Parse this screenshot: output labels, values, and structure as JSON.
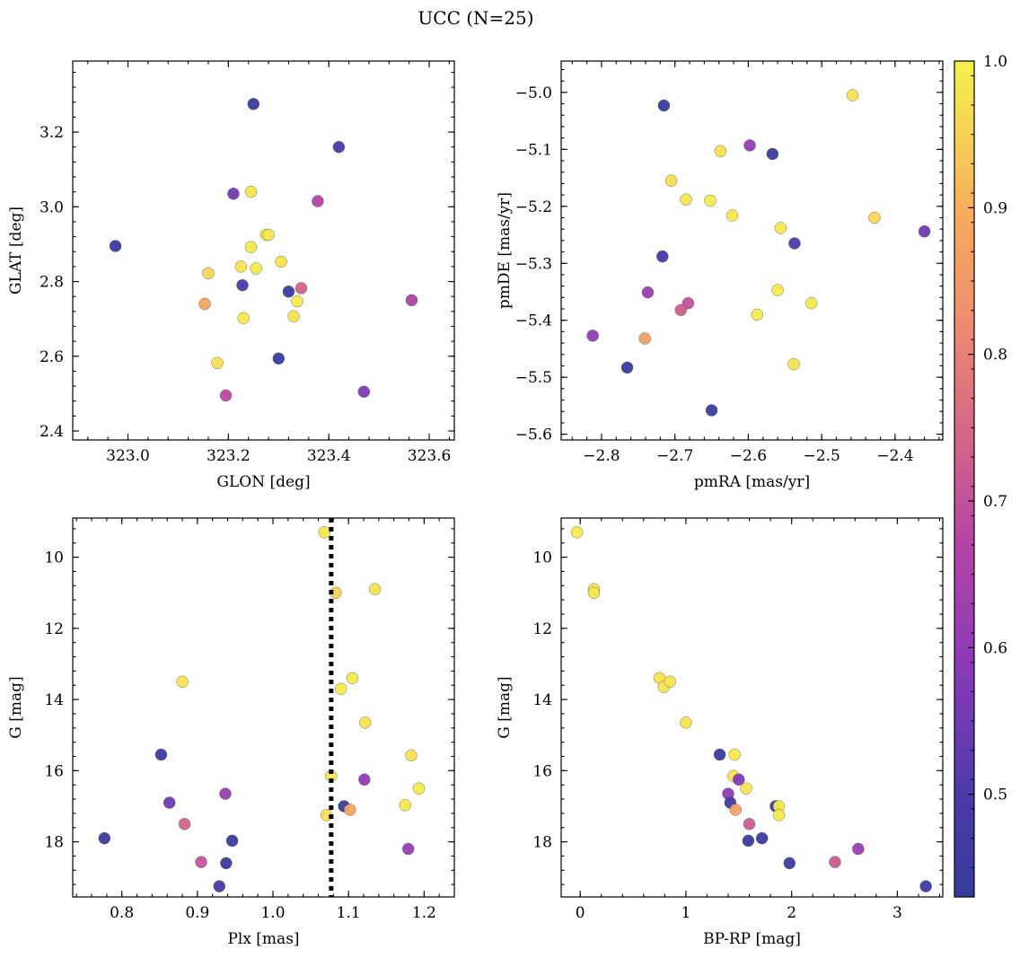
{
  "title": "UCC (N=25)",
  "colorbar": {
    "min": 0.43,
    "max": 1.0,
    "ticks": [
      0.5,
      0.6,
      0.7,
      0.8,
      0.9,
      1.0
    ],
    "tick_labels": [
      "0.5",
      "0.6",
      "0.7",
      "0.8",
      "0.9",
      "1.0"
    ],
    "colormap": "plasma"
  },
  "chart_data": [
    {
      "type": "scatter",
      "xlabel": "GLON [deg]",
      "ylabel": "GLAT [deg]",
      "xlim": [
        322.89,
        323.65
      ],
      "ylim": [
        2.376,
        3.39
      ],
      "xticks": [
        323.0,
        323.2,
        323.4,
        323.6
      ],
      "xtick_labels": [
        "323.0",
        "323.2",
        "323.4",
        "323.6"
      ],
      "yticks": [
        2.4,
        2.6,
        2.8,
        3.0,
        3.2
      ],
      "ytick_labels": [
        "2.4",
        "2.6",
        "2.8",
        "3.0",
        "3.2"
      ],
      "x": [
        322.975,
        323.25,
        323.42,
        323.21,
        323.245,
        323.378,
        323.275,
        323.28,
        323.245,
        323.305,
        323.16,
        323.225,
        323.255,
        323.153,
        323.228,
        323.32,
        323.345,
        323.337,
        323.565,
        323.23,
        323.33,
        323.178,
        323.3,
        323.195,
        323.47
      ],
      "y": [
        2.895,
        3.275,
        3.16,
        3.035,
        3.04,
        3.015,
        2.925,
        2.925,
        2.892,
        2.853,
        2.822,
        2.84,
        2.835,
        2.74,
        2.79,
        2.773,
        2.782,
        2.747,
        2.75,
        2.702,
        2.707,
        2.582,
        2.594,
        2.495,
        2.505
      ],
      "c": [
        0.45,
        0.44,
        0.5,
        0.55,
        0.98,
        0.67,
        0.98,
        0.99,
        0.99,
        0.98,
        0.96,
        0.98,
        0.99,
        0.88,
        0.5,
        0.45,
        0.74,
        0.99,
        0.66,
        0.99,
        0.98,
        0.97,
        0.45,
        0.68,
        0.58
      ]
    },
    {
      "type": "scatter",
      "xlabel": "pmRA [mas/yr]",
      "ylabel": "pmDE [mas/yr]",
      "xlim": [
        -2.855,
        -2.335
      ],
      "ylim": [
        -5.61,
        -4.945
      ],
      "xticks": [
        -2.8,
        -2.7,
        -2.6,
        -2.5,
        -2.4
      ],
      "xtick_labels": [
        "−2.8",
        "−2.7",
        "−2.6",
        "−2.5",
        "−2.4"
      ],
      "yticks": [
        -5.6,
        -5.5,
        -5.4,
        -5.3,
        -5.2,
        -5.1,
        -5.0
      ],
      "ytick_labels": [
        "−5.6",
        "−5.5",
        "−5.4",
        "−5.3",
        "−5.2",
        "−5.1",
        "−5.0"
      ],
      "x": [
        -2.458,
        -2.715,
        -2.598,
        -2.567,
        -2.638,
        -2.705,
        -2.685,
        -2.652,
        -2.622,
        -2.428,
        -2.556,
        -2.36,
        -2.537,
        -2.717,
        -2.737,
        -2.682,
        -2.692,
        -2.812,
        -2.741,
        -2.56,
        -2.514,
        -2.588,
        -2.538,
        -2.765,
        -2.65
      ],
      "y": [
        -5.005,
        -5.023,
        -5.093,
        -5.108,
        -5.103,
        -5.155,
        -5.188,
        -5.19,
        -5.216,
        -5.22,
        -5.238,
        -5.244,
        -5.265,
        -5.288,
        -5.351,
        -5.37,
        -5.382,
        -5.427,
        -5.432,
        -5.347,
        -5.37,
        -5.39,
        -5.477,
        -5.483,
        -5.558
      ],
      "c": [
        0.97,
        0.44,
        0.61,
        0.45,
        0.98,
        0.97,
        0.98,
        0.99,
        0.99,
        0.96,
        0.99,
        0.55,
        0.5,
        0.47,
        0.62,
        0.7,
        0.73,
        0.6,
        0.87,
        0.99,
        0.99,
        0.99,
        0.98,
        0.45,
        0.45
      ]
    },
    {
      "type": "scatter",
      "xlabel": "Plx [mas]",
      "ylabel": "G [mag]",
      "xlim": [
        0.735,
        1.24
      ],
      "ylim": [
        19.55,
        8.9
      ],
      "vline": 1.077,
      "xticks": [
        0.8,
        0.9,
        1.0,
        1.1,
        1.2
      ],
      "xtick_labels": [
        "0.8",
        "0.9",
        "1.0",
        "1.1",
        "1.2"
      ],
      "yticks": [
        10,
        12,
        14,
        16,
        18
      ],
      "ytick_labels": [
        "10",
        "12",
        "14",
        "16",
        "18"
      ],
      "x": [
        1.068,
        1.083,
        1.135,
        0.88,
        1.09,
        1.105,
        1.122,
        0.852,
        1.077,
        1.121,
        1.183,
        1.193,
        0.863,
        0.937,
        1.071,
        1.094,
        1.102,
        1.175,
        0.883,
        0.777,
        0.946,
        0.905,
        0.938,
        1.179,
        0.929
      ],
      "y": [
        9.3,
        11.0,
        10.9,
        13.5,
        13.7,
        13.4,
        14.65,
        15.55,
        16.15,
        16.25,
        15.57,
        16.5,
        16.9,
        16.65,
        17.25,
        17.0,
        17.1,
        16.97,
        17.5,
        17.9,
        17.97,
        18.57,
        18.6,
        18.2,
        19.25
      ],
      "c": [
        0.99,
        0.95,
        0.98,
        0.98,
        0.99,
        0.99,
        0.98,
        0.45,
        0.99,
        0.6,
        0.97,
        0.99,
        0.55,
        0.62,
        0.97,
        0.45,
        0.88,
        0.99,
        0.74,
        0.45,
        0.44,
        0.71,
        0.44,
        0.61,
        0.48
      ]
    },
    {
      "type": "scatter",
      "xlabel": "BP-RP [mag]",
      "ylabel": "G [mag]",
      "xlim": [
        -0.18,
        3.43
      ],
      "ylim": [
        19.55,
        8.9
      ],
      "xticks": [
        0,
        1,
        2,
        3
      ],
      "xtick_labels": [
        "0",
        "1",
        "2",
        "3"
      ],
      "yticks": [
        10,
        12,
        14,
        16,
        18
      ],
      "ytick_labels": [
        "10",
        "12",
        "14",
        "16",
        "18"
      ],
      "x": [
        -0.03,
        0.13,
        0.13,
        0.75,
        0.79,
        0.85,
        1.0,
        1.32,
        1.46,
        1.45,
        1.5,
        1.57,
        1.4,
        1.42,
        1.85,
        1.88,
        1.88,
        1.47,
        1.6,
        1.72,
        1.59,
        1.98,
        2.41,
        2.63,
        3.27
      ],
      "y": [
        9.3,
        10.9,
        11.0,
        13.4,
        13.65,
        13.5,
        14.65,
        15.55,
        15.55,
        16.15,
        16.25,
        16.5,
        16.65,
        16.9,
        17.0,
        17.0,
        17.25,
        17.1,
        17.5,
        17.9,
        17.97,
        18.6,
        18.57,
        18.2,
        19.25
      ],
      "c": [
        0.99,
        0.98,
        0.98,
        0.98,
        0.98,
        0.98,
        0.98,
        0.45,
        0.99,
        0.98,
        0.58,
        0.98,
        0.6,
        0.46,
        0.45,
        0.99,
        0.99,
        0.87,
        0.72,
        0.45,
        0.45,
        0.46,
        0.72,
        0.62,
        0.45
      ]
    }
  ]
}
